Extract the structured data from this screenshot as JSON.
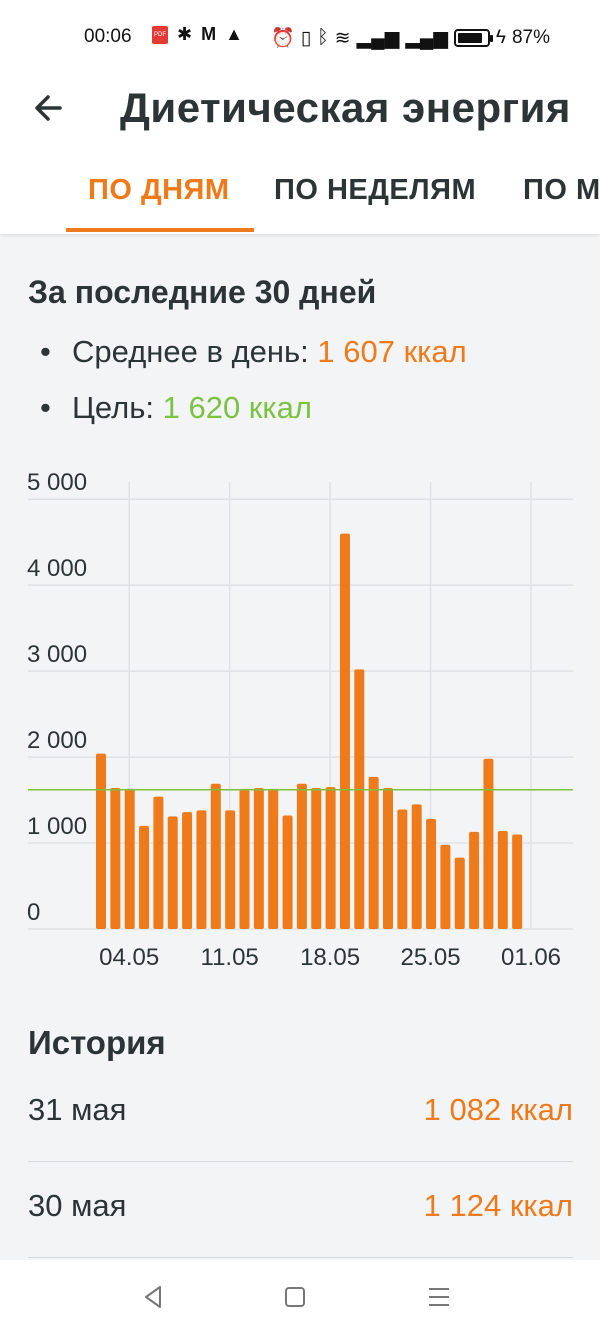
{
  "status_bar": {
    "time": "00:06",
    "battery_percent": "87%",
    "battery_level": 0.87,
    "icons": [
      "pdf-icon",
      "puzzle-icon",
      "mcdonalds-icon",
      "warning-icon",
      "alarm-icon",
      "vibrate-icon",
      "bluetooth-icon",
      "wifi-icon",
      "signal-icon",
      "signal-roaming-icon",
      "battery-icon",
      "charging-icon"
    ]
  },
  "appbar": {
    "title": "Диетическая энергия",
    "tabs": [
      {
        "label": "ПО ДНЯМ",
        "active": true
      },
      {
        "label": "ПО НЕДЕЛЯМ",
        "active": false
      },
      {
        "label": "ПО МЕСЯЦАМ",
        "active": false
      }
    ]
  },
  "summary": {
    "title": "За последние 30 дней",
    "average_label": "Среднее в день: ",
    "average_value": "1 607 ккал",
    "goal_label": "Цель: ",
    "goal_value": "1 620 ккал"
  },
  "chart_data": {
    "type": "bar",
    "y_ticks": [
      "0",
      "1 000",
      "2 000",
      "3 000",
      "4 000",
      "5 000"
    ],
    "ylim": [
      0,
      5200
    ],
    "x_tick_labels": [
      "04.05",
      "11.05",
      "18.05",
      "25.05",
      "01.06"
    ],
    "x_start_date": "02.05",
    "goal": 1620,
    "bar_color": "#ef7a1a",
    "goal_color": "#7cc242",
    "values": [
      2040,
      1640,
      1630,
      1200,
      1540,
      1310,
      1360,
      1380,
      1690,
      1380,
      1630,
      1640,
      1630,
      1320,
      1690,
      1640,
      1650,
      4600,
      3020,
      1770,
      1640,
      1390,
      1450,
      1280,
      980,
      830,
      1130,
      1980,
      1140,
      1100
    ]
  },
  "history": {
    "title": "История",
    "rows": [
      {
        "date": "31 мая",
        "value": "1 082 ккал"
      },
      {
        "date": "30 мая",
        "value": "1 124 ккал"
      }
    ]
  },
  "navbar": {
    "buttons": [
      "back-triangle-icon",
      "home-square-icon",
      "menu-lines-icon"
    ]
  }
}
